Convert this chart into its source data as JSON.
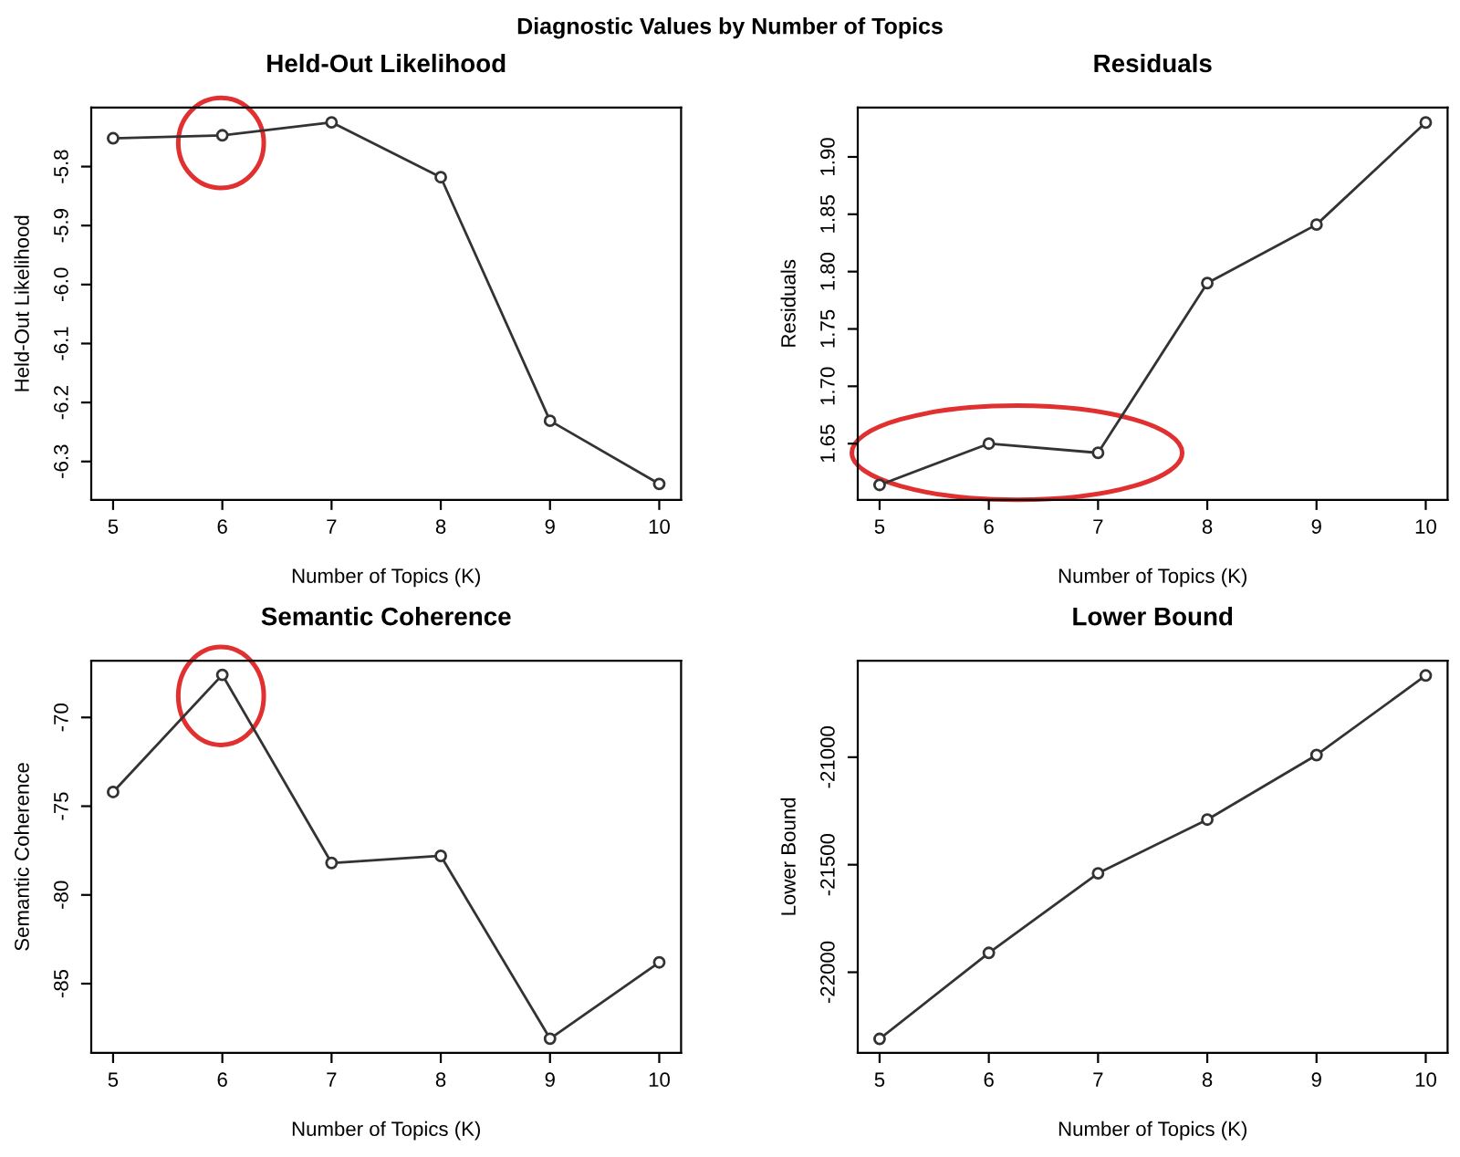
{
  "chart_data": [
    {
      "type": "other",
      "title": "Diagnostic Values by Number of Topics"
    },
    {
      "type": "line",
      "title": "Held-Out Likelihood",
      "xlabel": "Number of Topics (K)",
      "ylabel": "Held-Out Likelihood",
      "x": [
        5,
        6,
        7,
        8,
        9,
        10
      ],
      "series": [
        {
          "color": "#333333",
          "values": [
            -5.752,
            -5.747,
            -5.725,
            -5.818,
            -6.231,
            -6.338
          ]
        }
      ],
      "xlim": [
        4.8,
        10.2
      ],
      "xticks": [
        5,
        6,
        7,
        8,
        9,
        10
      ],
      "ylim": [
        -6.365,
        -5.7
      ],
      "yticks": [
        -5.8,
        -5.9,
        {
          "value": -6.0,
          "label": "-6.0"
        },
        -6.1,
        -6.2,
        -6.3
      ],
      "marker": "circle",
      "grid": false
    },
    {
      "type": "line",
      "title": "Residuals",
      "xlabel": "Number of Topics (K)",
      "ylabel": "Residuals",
      "x": [
        5,
        6,
        7,
        8,
        9,
        10
      ],
      "series": [
        {
          "color": "#333333",
          "values": [
            1.614,
            1.65,
            1.642,
            1.79,
            1.841,
            1.93
          ]
        }
      ],
      "xlim": [
        4.8,
        10.2
      ],
      "xticks": [
        5,
        6,
        7,
        8,
        9,
        10
      ],
      "ylim": [
        1.601,
        1.943
      ],
      "yticks": [
        1.65,
        {
          "value": 1.7,
          "label": "1.70"
        },
        1.75,
        {
          "value": 1.8,
          "label": "1.80"
        },
        1.85,
        {
          "value": 1.9,
          "label": "1.90"
        }
      ],
      "marker": "circle",
      "grid": false
    },
    {
      "type": "line",
      "title": "Semantic Coherence",
      "xlabel": "Number of Topics (K)",
      "ylabel": "Semantic Coherence",
      "x": [
        5,
        6,
        7,
        8,
        9,
        10
      ],
      "series": [
        {
          "color": "#333333",
          "values": [
            -74.2,
            -67.6,
            -78.2,
            -77.8,
            -88.1,
            -83.8
          ]
        }
      ],
      "xlim": [
        4.8,
        10.2
      ],
      "xticks": [
        5,
        6,
        7,
        8,
        9,
        10
      ],
      "ylim": [
        -88.9,
        -66.8
      ],
      "yticks": [
        -70,
        -75,
        -80,
        -85
      ],
      "marker": "circle",
      "grid": false
    },
    {
      "type": "line",
      "title": "Lower Bound",
      "xlabel": "Number of Topics (K)",
      "ylabel": "Lower Bound",
      "x": [
        5,
        6,
        7,
        8,
        9,
        10
      ],
      "series": [
        {
          "color": "#333333",
          "values": [
            -22310,
            -21910,
            -21540,
            -21290,
            -20990,
            -20620
          ]
        }
      ],
      "xlim": [
        4.8,
        10.2
      ],
      "xticks": [
        5,
        6,
        7,
        8,
        9,
        10
      ],
      "ylim": [
        -22375,
        -20551
      ],
      "yticks": [
        -21000,
        -21500,
        -22000
      ],
      "marker": "circle",
      "grid": false
    }
  ]
}
